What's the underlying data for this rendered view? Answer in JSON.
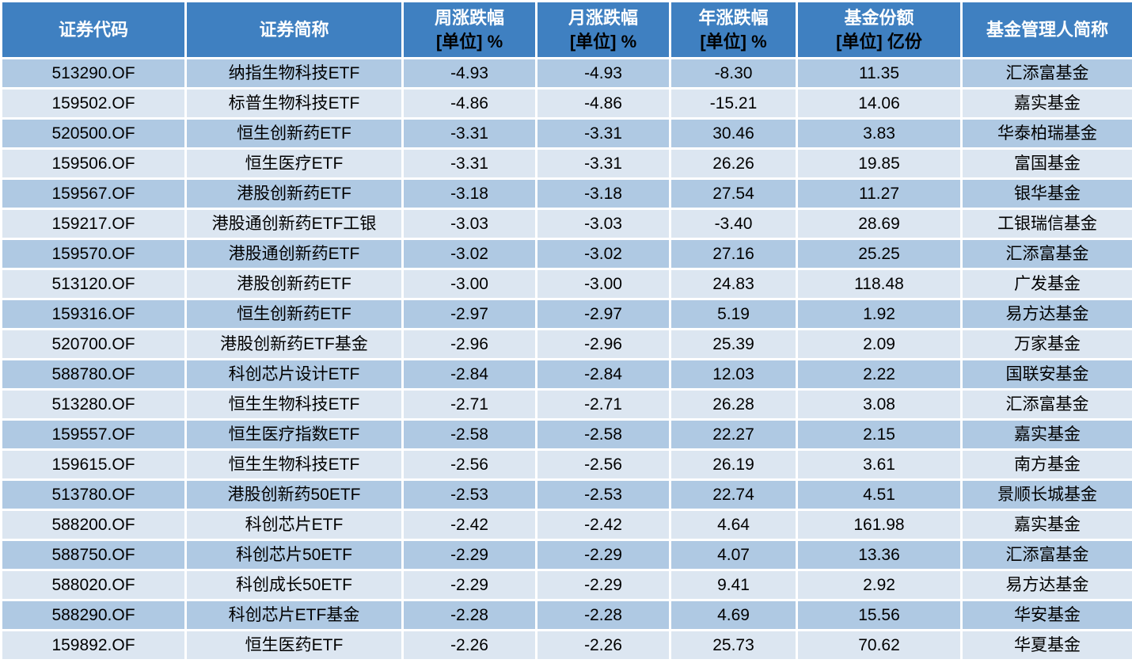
{
  "colors": {
    "header_bg": "#3F80C1",
    "row_stripe_dark": "#AFC9E3",
    "row_stripe_light": "#DCE6F1",
    "gridline": "#FFFFFF",
    "header_text": "#FFFFFF",
    "header_unit_text": "#000000",
    "cell_text": "#000000"
  },
  "chart_data": {
    "type": "table",
    "title": "",
    "columns": [
      {
        "key": "code",
        "label": "证券代码",
        "unit": ""
      },
      {
        "key": "name",
        "label": "证券简称",
        "unit": ""
      },
      {
        "key": "week",
        "label": "周涨跌幅",
        "unit": "[单位] %"
      },
      {
        "key": "month",
        "label": "月涨跌幅",
        "unit": "[单位] %"
      },
      {
        "key": "year",
        "label": "年涨跌幅",
        "unit": "[单位] %"
      },
      {
        "key": "shares",
        "label": "基金份额",
        "unit": "[单位] 亿份"
      },
      {
        "key": "manager",
        "label": "基金管理人简称",
        "unit": ""
      }
    ],
    "rows": [
      {
        "code": "513290.OF",
        "name": "纳指生物科技ETF",
        "week": "-4.93",
        "month": "-4.93",
        "year": "-8.30",
        "shares": "11.35",
        "manager": "汇添富基金"
      },
      {
        "code": "159502.OF",
        "name": "标普生物科技ETF",
        "week": "-4.86",
        "month": "-4.86",
        "year": "-15.21",
        "shares": "14.06",
        "manager": "嘉实基金"
      },
      {
        "code": "520500.OF",
        "name": "恒生创新药ETF",
        "week": "-3.31",
        "month": "-3.31",
        "year": "30.46",
        "shares": "3.83",
        "manager": "华泰柏瑞基金"
      },
      {
        "code": "159506.OF",
        "name": "恒生医疗ETF",
        "week": "-3.31",
        "month": "-3.31",
        "year": "26.26",
        "shares": "19.85",
        "manager": "富国基金"
      },
      {
        "code": "159567.OF",
        "name": "港股创新药ETF",
        "week": "-3.18",
        "month": "-3.18",
        "year": "27.54",
        "shares": "11.27",
        "manager": "银华基金"
      },
      {
        "code": "159217.OF",
        "name": "港股通创新药ETF工银",
        "week": "-3.03",
        "month": "-3.03",
        "year": "-3.40",
        "shares": "28.69",
        "manager": "工银瑞信基金"
      },
      {
        "code": "159570.OF",
        "name": "港股通创新药ETF",
        "week": "-3.02",
        "month": "-3.02",
        "year": "27.16",
        "shares": "25.25",
        "manager": "汇添富基金"
      },
      {
        "code": "513120.OF",
        "name": "港股创新药ETF",
        "week": "-3.00",
        "month": "-3.00",
        "year": "24.83",
        "shares": "118.48",
        "manager": "广发基金"
      },
      {
        "code": "159316.OF",
        "name": "恒生创新药ETF",
        "week": "-2.97",
        "month": "-2.97",
        "year": "5.19",
        "shares": "1.92",
        "manager": "易方达基金"
      },
      {
        "code": "520700.OF",
        "name": "港股创新药ETF基金",
        "week": "-2.96",
        "month": "-2.96",
        "year": "25.39",
        "shares": "2.09",
        "manager": "万家基金"
      },
      {
        "code": "588780.OF",
        "name": "科创芯片设计ETF",
        "week": "-2.84",
        "month": "-2.84",
        "year": "12.03",
        "shares": "2.22",
        "manager": "国联安基金"
      },
      {
        "code": "513280.OF",
        "name": "恒生生物科技ETF",
        "week": "-2.71",
        "month": "-2.71",
        "year": "26.28",
        "shares": "3.08",
        "manager": "汇添富基金"
      },
      {
        "code": "159557.OF",
        "name": "恒生医疗指数ETF",
        "week": "-2.58",
        "month": "-2.58",
        "year": "22.27",
        "shares": "2.15",
        "manager": "嘉实基金"
      },
      {
        "code": "159615.OF",
        "name": "恒生生物科技ETF",
        "week": "-2.56",
        "month": "-2.56",
        "year": "26.19",
        "shares": "3.61",
        "manager": "南方基金"
      },
      {
        "code": "513780.OF",
        "name": "港股创新药50ETF",
        "week": "-2.53",
        "month": "-2.53",
        "year": "22.74",
        "shares": "4.51",
        "manager": "景顺长城基金"
      },
      {
        "code": "588200.OF",
        "name": "科创芯片ETF",
        "week": "-2.42",
        "month": "-2.42",
        "year": "4.64",
        "shares": "161.98",
        "manager": "嘉实基金"
      },
      {
        "code": "588750.OF",
        "name": "科创芯片50ETF",
        "week": "-2.29",
        "month": "-2.29",
        "year": "4.07",
        "shares": "13.36",
        "manager": "汇添富基金"
      },
      {
        "code": "588020.OF",
        "name": "科创成长50ETF",
        "week": "-2.29",
        "month": "-2.29",
        "year": "9.41",
        "shares": "2.92",
        "manager": "易方达基金"
      },
      {
        "code": "588290.OF",
        "name": "科创芯片ETF基金",
        "week": "-2.28",
        "month": "-2.28",
        "year": "4.69",
        "shares": "15.56",
        "manager": "华安基金"
      },
      {
        "code": "159892.OF",
        "name": "恒生医药ETF",
        "week": "-2.26",
        "month": "-2.26",
        "year": "25.73",
        "shares": "70.62",
        "manager": "华夏基金"
      }
    ]
  }
}
